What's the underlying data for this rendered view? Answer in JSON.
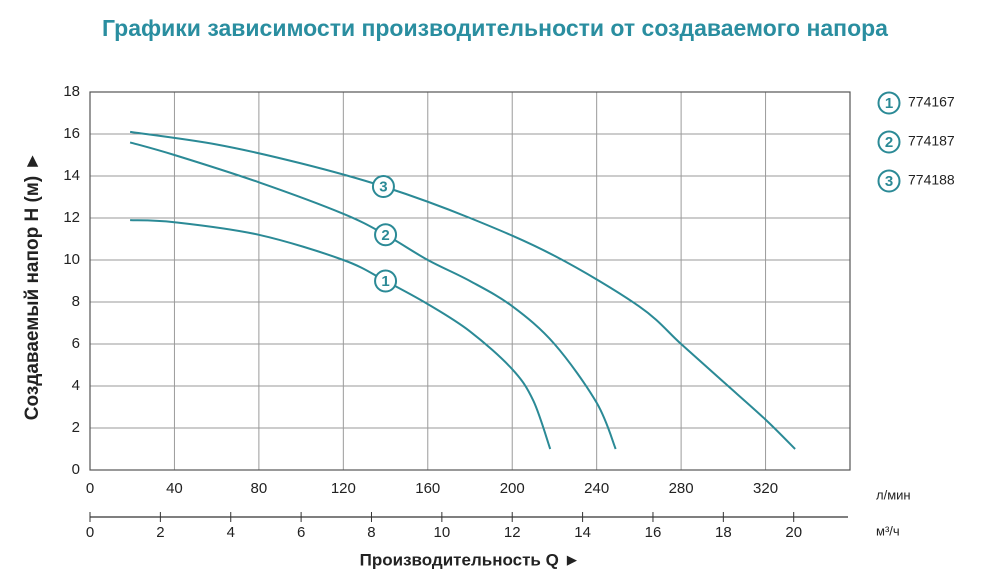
{
  "chart_data": {
    "type": "line",
    "title": "Графики зависимости производительности от создаваемого напора",
    "x_label": "Производительность Q ►",
    "y_label": "Создаваемый напор H (м) ►",
    "x_unit": "л/мин",
    "x2_unit": "м³/ч",
    "xlim": [
      0,
      360
    ],
    "xticks": [
      0,
      40,
      80,
      120,
      160,
      200,
      240,
      280,
      320
    ],
    "x2lim": [
      0,
      21.6
    ],
    "x2ticks": [
      0,
      2,
      4,
      6,
      8,
      10,
      12,
      14,
      16,
      18,
      20
    ],
    "ylim": [
      0,
      18
    ],
    "yticks": [
      0,
      2,
      4,
      6,
      8,
      10,
      12,
      14,
      16,
      18
    ],
    "grid": true,
    "legend": "right",
    "series": [
      {
        "name": "774167",
        "marker": "1",
        "color": "#2b8a96",
        "x": [
          19,
          40,
          80,
          120,
          140,
          160,
          180,
          200,
          210,
          218
        ],
        "values": [
          11.9,
          11.8,
          11.2,
          10.0,
          9.0,
          7.9,
          6.6,
          4.8,
          3.3,
          1.0
        ]
      },
      {
        "name": "774187",
        "marker": "2",
        "color": "#2b8a96",
        "x": [
          19,
          40,
          80,
          120,
          140,
          160,
          180,
          200,
          220,
          240,
          249
        ],
        "values": [
          15.6,
          15.0,
          13.7,
          12.2,
          11.2,
          10.0,
          9.0,
          7.8,
          6.0,
          3.2,
          1.0
        ]
      },
      {
        "name": "774188",
        "marker": "3",
        "color": "#2b8a96",
        "x": [
          19,
          60,
          100,
          139,
          180,
          220,
          260,
          280,
          300,
          320,
          334
        ],
        "values": [
          16.1,
          15.5,
          14.6,
          13.5,
          12.0,
          10.2,
          7.8,
          6.0,
          4.2,
          2.4,
          1.0
        ]
      }
    ]
  }
}
